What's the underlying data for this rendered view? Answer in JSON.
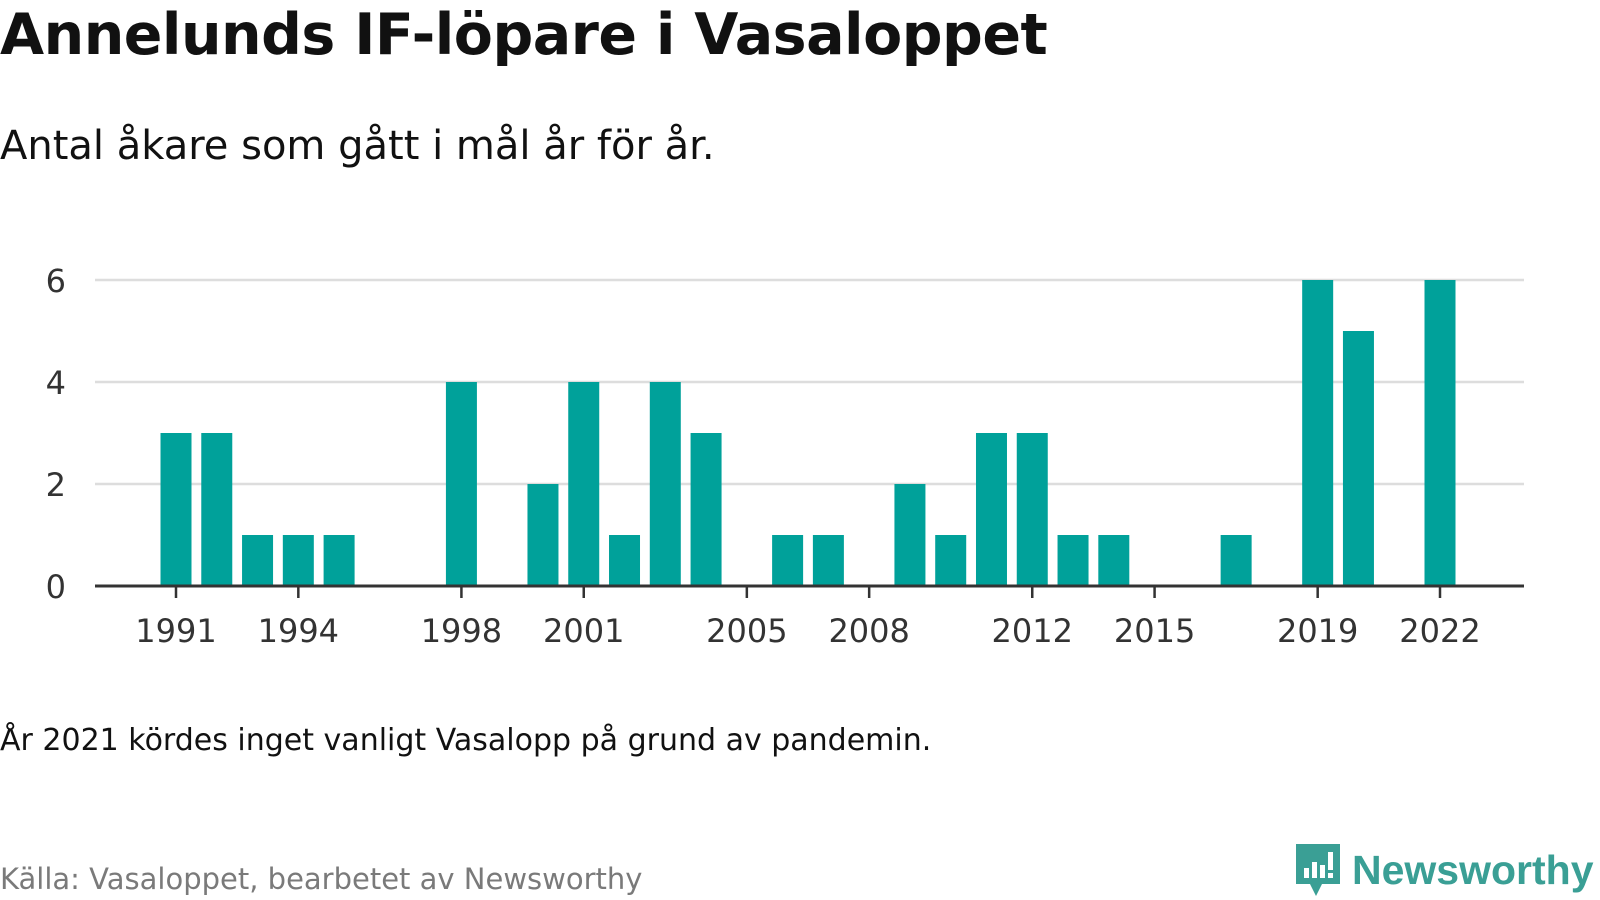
{
  "title": "Annelunds IF-löpare i Vasaloppet",
  "subtitle": "Antal åkare som gått i mål år för år.",
  "note": "År 2021 kördes inget vanligt Vasalopp på grund av pandemin.",
  "source": "Källa: Vasaloppet, bearbetet av Newsworthy",
  "brand": {
    "name": "Newsworthy",
    "icon": "newsworthy-logo-icon",
    "color": "#3a9f95"
  },
  "colors": {
    "bar": "#00a19a",
    "grid": "#dddddd",
    "axis": "#333333"
  },
  "chart_data": {
    "type": "bar",
    "x": [
      1991,
      1992,
      1993,
      1994,
      1995,
      1996,
      1997,
      1998,
      1999,
      2000,
      2001,
      2002,
      2003,
      2004,
      2005,
      2006,
      2007,
      2008,
      2009,
      2010,
      2011,
      2012,
      2013,
      2014,
      2015,
      2016,
      2017,
      2018,
      2019,
      2020,
      2021,
      2022
    ],
    "values": [
      3,
      3,
      1,
      1,
      1,
      0,
      0,
      4,
      0,
      2,
      4,
      1,
      4,
      3,
      0,
      1,
      1,
      0,
      2,
      1,
      3,
      3,
      1,
      1,
      0,
      0,
      1,
      0,
      6,
      5,
      0,
      6
    ],
    "x_ticks": [
      "1991",
      "1994",
      "1998",
      "2001",
      "2005",
      "2008",
      "2012",
      "2015",
      "2019",
      "2022"
    ],
    "y_ticks": [
      "0",
      "2",
      "4",
      "6"
    ],
    "ylim": [
      0,
      6
    ],
    "grid": true
  }
}
